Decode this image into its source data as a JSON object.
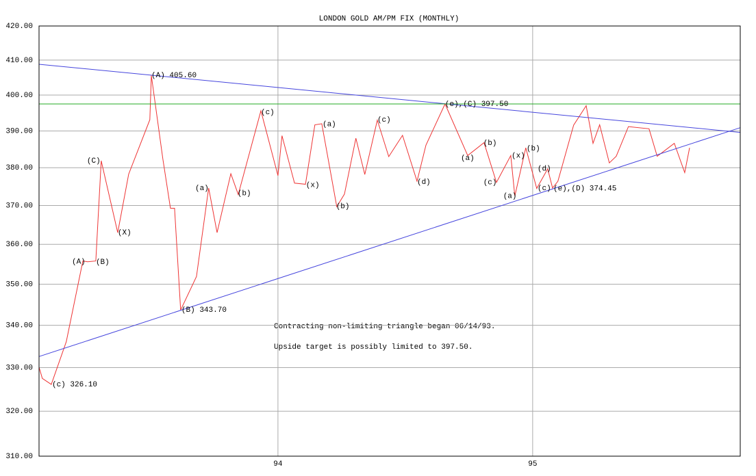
{
  "chart_data": {
    "type": "line",
    "title": "LONDON GOLD AM/PM FIX (MONTHLY)",
    "log_y": true,
    "grid": true,
    "xlim": [
      93.062,
      95.815
    ],
    "xticks": [
      94,
      95
    ],
    "ylim": [
      310,
      420
    ],
    "yticks": [
      {
        "value": 310,
        "label": "310.00"
      },
      {
        "value": 320,
        "label": "320.00"
      },
      {
        "value": 330,
        "label": "330.00"
      },
      {
        "value": 340,
        "label": "340.00"
      },
      {
        "value": 350,
        "label": "350.00"
      },
      {
        "value": 360,
        "label": "360.00"
      },
      {
        "value": 370,
        "label": "370.00"
      },
      {
        "value": 380,
        "label": "380.00"
      },
      {
        "value": 390,
        "label": "390.00"
      },
      {
        "value": 400,
        "label": "400.00"
      },
      {
        "value": 410,
        "label": "410.00"
      },
      {
        "value": 420,
        "label": "420.00"
      }
    ],
    "series": [
      {
        "color": "#ee3333",
        "x": [
          93.062,
          93.075,
          93.11,
          93.169,
          93.234,
          93.253,
          93.285,
          93.306,
          93.371,
          93.414,
          93.497,
          93.503,
          93.548,
          93.578,
          93.594,
          93.618,
          93.68,
          93.728,
          93.761,
          93.815,
          93.844,
          93.933,
          94.0,
          94.016,
          94.065,
          94.108,
          94.145,
          94.172,
          94.231,
          94.261,
          94.306,
          94.341,
          94.39,
          94.435,
          94.489,
          94.546,
          94.581,
          94.656,
          94.745,
          94.809,
          94.858,
          94.914,
          94.93,
          94.973,
          95.016,
          95.059,
          95.078,
          95.099,
          95.161,
          95.21,
          95.237,
          95.263,
          95.301,
          95.328,
          95.376,
          95.457,
          95.489,
          95.556,
          95.597,
          95.616
        ],
        "values": [
          330.1,
          327.5,
          326.1,
          336.1,
          355.8,
          355.6,
          355.8,
          381.9,
          363.0,
          378.3,
          393.1,
          405.6,
          382.4,
          369.3,
          369.3,
          343.7,
          351.9,
          374.6,
          363.0,
          378.4,
          372.9,
          395.6,
          377.9,
          388.7,
          375.9,
          375.6,
          391.7,
          392.0,
          369.7,
          373.0,
          388.0,
          378.2,
          393.0,
          383.0,
          388.8,
          376.4,
          386.1,
          397.5,
          383.3,
          386.8,
          376.1,
          383.3,
          372.5,
          385.4,
          374.5,
          379.7,
          374.6,
          376.4,
          391.6,
          397.0,
          386.6,
          391.7,
          381.3,
          383.1,
          391.2,
          390.6,
          383.1,
          386.6,
          378.7,
          385.4
        ]
      },
      {
        "color": "#4444dd",
        "x": [
          93.062,
          95.815
        ],
        "values": [
          408.8,
          389.6
        ]
      },
      {
        "color": "#4444dd",
        "x": [
          93.062,
          95.815
        ],
        "values": [
          332.6,
          390.9
        ]
      },
      {
        "color": "#22aa22",
        "x": [
          93.062,
          95.815
        ],
        "values": [
          397.5,
          397.5
        ]
      }
    ],
    "annotations": [
      {
        "text": "(c) 326.10",
        "x": 93.113,
        "y": 326.1
      },
      {
        "text": "(A)",
        "x": 93.191,
        "y": 355.6
      },
      {
        "text": "(B)",
        "x": 93.285,
        "y": 355.5
      },
      {
        "text": "(C)",
        "x": 93.25,
        "y": 381.9
      },
      {
        "text": "(X)",
        "x": 93.371,
        "y": 363.0
      },
      {
        "text": "(A) 405.60",
        "x": 93.503,
        "y": 405.6
      },
      {
        "text": "(B) 343.70",
        "x": 93.621,
        "y": 343.7
      },
      {
        "text": "(a)",
        "x": 93.675,
        "y": 374.6
      },
      {
        "text": "(b)",
        "x": 93.841,
        "y": 373.2
      },
      {
        "text": "(c)",
        "x": 93.933,
        "y": 395.2
      },
      {
        "text": "(x)",
        "x": 94.11,
        "y": 375.4
      },
      {
        "text": "(a)",
        "x": 94.175,
        "y": 391.9
      },
      {
        "text": "(b)",
        "x": 94.228,
        "y": 369.8
      },
      {
        "text": "(c)",
        "x": 94.39,
        "y": 393.1
      },
      {
        "text": "(d)",
        "x": 94.546,
        "y": 376.2
      },
      {
        "text": "(e),(C) 397.50",
        "x": 94.656,
        "y": 397.5
      },
      {
        "text": "(a)",
        "x": 94.718,
        "y": 382.6
      },
      {
        "text": "(b)",
        "x": 94.806,
        "y": 386.7
      },
      {
        "text": "(c)",
        "x": 94.806,
        "y": 376.1
      },
      {
        "text": "(a)",
        "x": 94.884,
        "y": 372.5
      },
      {
        "text": "(x)",
        "x": 94.917,
        "y": 383.3
      },
      {
        "text": "(b)",
        "x": 94.976,
        "y": 385.2
      },
      {
        "text": "(d)",
        "x": 95.019,
        "y": 379.8
      },
      {
        "text": "(c)",
        "x": 95.019,
        "y": 374.6
      },
      {
        "text": "(e),(D) 374.45",
        "x": 95.081,
        "y": 374.45
      }
    ],
    "notes": [
      "Contracting non-limiting triangle began 06/14/93.",
      "Upside target is possibly limited to 397.50."
    ]
  }
}
